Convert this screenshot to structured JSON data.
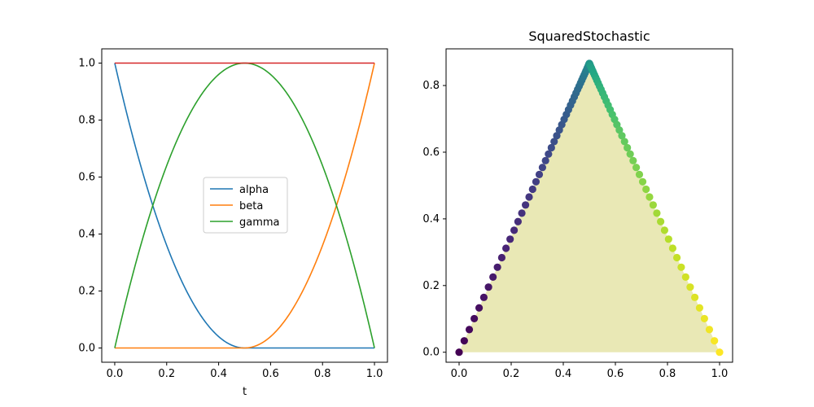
{
  "chart_data": [
    {
      "type": "line",
      "title": "",
      "xlabel": "t",
      "ylabel": "",
      "xlim": [
        -0.05,
        1.05
      ],
      "ylim": [
        -0.05,
        1.05
      ],
      "xticks": [
        "0.0",
        "0.2",
        "0.4",
        "0.6",
        "0.8",
        "1.0"
      ],
      "yticks": [
        "0.0",
        "0.2",
        "0.4",
        "0.6",
        "0.8",
        "1.0"
      ],
      "legend_position": "center",
      "x": [
        0.0,
        0.1,
        0.2,
        0.3,
        0.4,
        0.5,
        0.6,
        0.7,
        0.8,
        0.9,
        1.0
      ],
      "series": [
        {
          "name": "alpha",
          "color": "#1f77b4",
          "values": [
            1.0,
            0.64,
            0.36,
            0.16,
            0.04,
            0.0,
            0.0,
            0.0,
            0.0,
            0.0,
            0.0
          ]
        },
        {
          "name": "beta",
          "color": "#ff7f0e",
          "values": [
            0.0,
            0.0,
            0.0,
            0.0,
            0.0,
            0.0,
            0.04,
            0.16,
            0.36,
            0.64,
            1.0
          ]
        },
        {
          "name": "gamma",
          "color": "#2ca02c",
          "values": [
            0.0,
            0.36,
            0.64,
            0.84,
            0.96,
            1.0,
            0.96,
            0.84,
            0.64,
            0.36,
            0.0
          ]
        },
        {
          "color": "#d62728",
          "values": [
            1.0,
            1.0,
            1.0,
            1.0,
            1.0,
            1.0,
            1.0,
            1.0,
            1.0,
            1.0,
            1.0
          ]
        }
      ]
    },
    {
      "type": "scatter",
      "title": "SquaredStochastic",
      "xlabel": "",
      "ylabel": "",
      "xlim": [
        -0.05,
        1.05
      ],
      "ylim": [
        -0.03,
        0.91
      ],
      "xticks": [
        "0.0",
        "0.2",
        "0.4",
        "0.6",
        "0.8",
        "1.0"
      ],
      "yticks": [
        "0.0",
        "0.2",
        "0.4",
        "0.6",
        "0.8"
      ],
      "colormap": "viridis",
      "fill": {
        "color": "#e9e8b5",
        "vertices": [
          [
            0.0,
            0.0
          ],
          [
            0.5,
            0.866
          ],
          [
            1.0,
            0.0
          ]
        ]
      },
      "points": {
        "count": 101,
        "t_range": [
          0.0,
          1.0
        ],
        "description_of_path": "x = beta + gamma/2, y = gamma*0.866 for t in [0,1]"
      }
    }
  ]
}
